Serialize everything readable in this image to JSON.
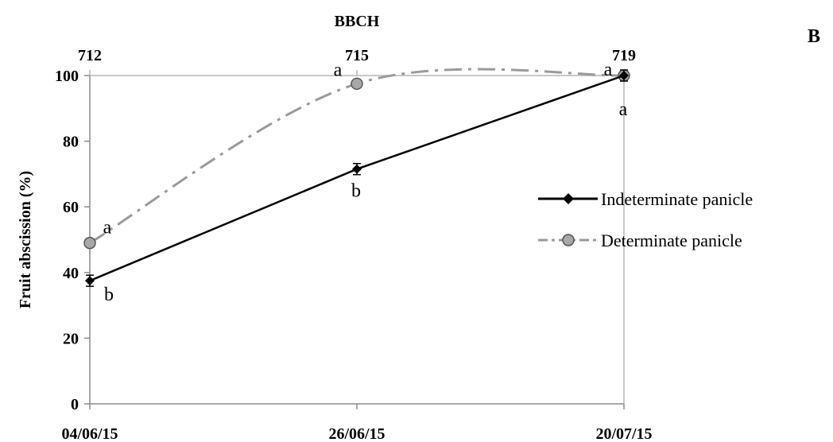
{
  "panel_label": "B",
  "chart_data": {
    "type": "line",
    "xlabel": "",
    "ylabel": "Fruit abscission (%)",
    "top_axis_label": "BBCH",
    "categories": [
      "04/06/15",
      "26/06/15",
      "20/07/15"
    ],
    "top_categories": [
      "712",
      "715",
      "719"
    ],
    "ylim": [
      0,
      100
    ],
    "yticks": [
      "0",
      "20",
      "40",
      "60",
      "80",
      "100"
    ],
    "grid": false,
    "legend_position": "right",
    "series": [
      {
        "name": "Indeterminate panicle",
        "values": [
          37.5,
          71.5,
          100
        ],
        "letters": [
          "b",
          "b",
          "a"
        ],
        "color": "#000000",
        "style": "solid",
        "marker": "diamond"
      },
      {
        "name": "Determinate panicle",
        "values": [
          49,
          97.5,
          100
        ],
        "letters": [
          "a",
          "a",
          "a"
        ],
        "color": "#9a9a9a",
        "style": "dash-dot",
        "marker": "circle"
      }
    ]
  }
}
